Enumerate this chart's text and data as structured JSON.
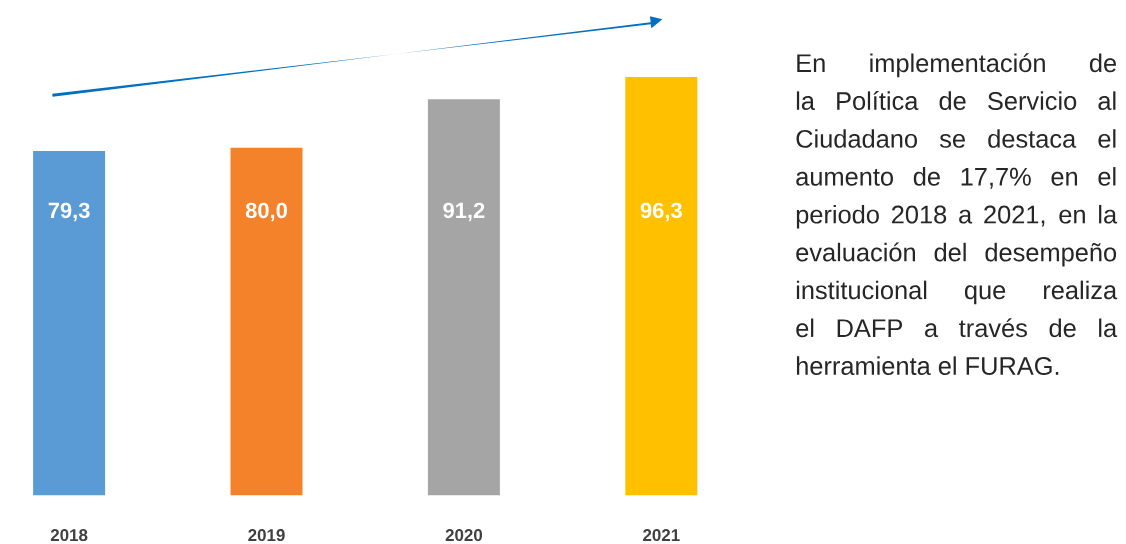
{
  "chart_data": {
    "type": "bar",
    "categories": [
      "2018",
      "2019",
      "2020",
      "2021"
    ],
    "values": [
      79.3,
      80.0,
      91.2,
      96.3
    ],
    "value_labels": [
      "79,3",
      "80,0",
      "91,2",
      "96,3"
    ],
    "colors": [
      "#5b9bd5",
      "#f4822a",
      "#a5a5a5",
      "#ffc000"
    ],
    "annotations": [
      "En implementación de la Política de Servicio al Ciudadano se destaca el aumento de 17,7% en el periodo 2018 a 2021, en la evaluación del desempeño institucional que realiza el DAFP a través de la herramienta el FURAG."
    ]
  }
}
